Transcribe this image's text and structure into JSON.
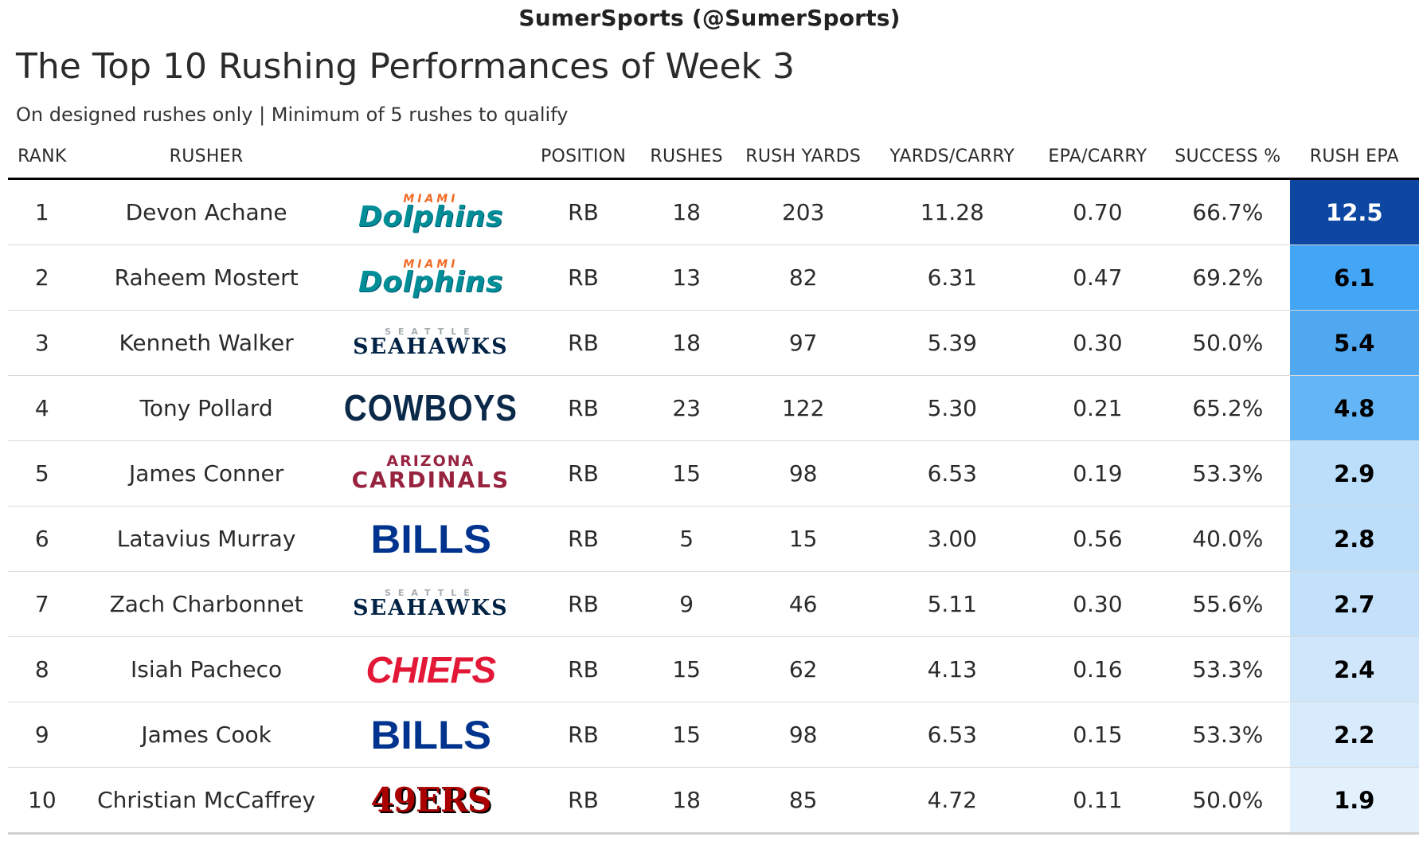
{
  "attribution": "SumerSports (@SumerSports)",
  "title": "The Top 10 Rushing Performances of Week 3",
  "subtitle": "On designed rushes only | Minimum of 5 rushes to qualify",
  "chart_data": {
    "type": "table",
    "columns": [
      "RANK",
      "RUSHER",
      "",
      "POSITION",
      "RUSHES",
      "RUSH YARDS",
      "YARDS/CARRY",
      "EPA/CARRY",
      "SUCCESS %",
      "RUSH EPA"
    ],
    "rows": [
      {
        "rank": "1",
        "rusher": "Devon Achane",
        "team": "dolphins",
        "position": "RB",
        "rushes": "18",
        "rush_yards": "203",
        "yards_per_carry": "11.28",
        "epa_per_carry": "0.70",
        "success": "66.7%",
        "rush_epa": "12.5",
        "epa_bg": "#0d47a1",
        "epa_fg": "#ffffff"
      },
      {
        "rank": "2",
        "rusher": "Raheem Mostert",
        "team": "dolphins",
        "position": "RB",
        "rushes": "13",
        "rush_yards": "82",
        "yards_per_carry": "6.31",
        "epa_per_carry": "0.47",
        "success": "69.2%",
        "rush_epa": "6.1",
        "epa_bg": "#42a5f5",
        "epa_fg": "#000000"
      },
      {
        "rank": "3",
        "rusher": "Kenneth Walker",
        "team": "seahawks",
        "position": "RB",
        "rushes": "18",
        "rush_yards": "97",
        "yards_per_carry": "5.39",
        "epa_per_carry": "0.30",
        "success": "50.0%",
        "rush_epa": "5.4",
        "epa_bg": "#4fa8f0",
        "epa_fg": "#000000"
      },
      {
        "rank": "4",
        "rusher": "Tony Pollard",
        "team": "cowboys",
        "position": "RB",
        "rushes": "23",
        "rush_yards": "122",
        "yards_per_carry": "5.30",
        "epa_per_carry": "0.21",
        "success": "65.2%",
        "rush_epa": "4.8",
        "epa_bg": "#64b5f6",
        "epa_fg": "#000000"
      },
      {
        "rank": "5",
        "rusher": "James Conner",
        "team": "cardinals",
        "position": "RB",
        "rushes": "15",
        "rush_yards": "98",
        "yards_per_carry": "6.53",
        "epa_per_carry": "0.19",
        "success": "53.3%",
        "rush_epa": "2.9",
        "epa_bg": "#bbdefb",
        "epa_fg": "#000000"
      },
      {
        "rank": "6",
        "rusher": "Latavius Murray",
        "team": "bills",
        "position": "RB",
        "rushes": "5",
        "rush_yards": "15",
        "yards_per_carry": "3.00",
        "epa_per_carry": "0.56",
        "success": "40.0%",
        "rush_epa": "2.8",
        "epa_bg": "#bcdefa",
        "epa_fg": "#000000"
      },
      {
        "rank": "7",
        "rusher": "Zach Charbonnet",
        "team": "seahawks",
        "position": "RB",
        "rushes": "9",
        "rush_yards": "46",
        "yards_per_carry": "5.11",
        "epa_per_carry": "0.30",
        "success": "55.6%",
        "rush_epa": "2.7",
        "epa_bg": "#c3e1fb",
        "epa_fg": "#000000"
      },
      {
        "rank": "8",
        "rusher": "Isiah Pacheco",
        "team": "chiefs",
        "position": "RB",
        "rushes": "15",
        "rush_yards": "62",
        "yards_per_carry": "4.13",
        "epa_per_carry": "0.16",
        "success": "53.3%",
        "rush_epa": "2.4",
        "epa_bg": "#cfe6fb",
        "epa_fg": "#000000"
      },
      {
        "rank": "9",
        "rusher": "James Cook",
        "team": "bills",
        "position": "RB",
        "rushes": "15",
        "rush_yards": "98",
        "yards_per_carry": "6.53",
        "epa_per_carry": "0.15",
        "success": "53.3%",
        "rush_epa": "2.2",
        "epa_bg": "#d8ebfc",
        "epa_fg": "#000000"
      },
      {
        "rank": "10",
        "rusher": "Christian McCaffrey",
        "team": "49ers",
        "position": "RB",
        "rushes": "18",
        "rush_yards": "85",
        "yards_per_carry": "4.72",
        "epa_per_carry": "0.11",
        "success": "50.0%",
        "rush_epa": "1.9",
        "epa_bg": "#e3f1fd",
        "epa_fg": "#000000"
      }
    ]
  },
  "logos": {
    "dolphins": {
      "top": "MIAMI",
      "main": "Dolphins"
    },
    "seahawks": {
      "top": "SEATTLE",
      "main": "SEAHAWKS"
    },
    "cowboys": {
      "main": "COWBOYS"
    },
    "cardinals": {
      "top": "ARIZONA",
      "main": "CARDINALS"
    },
    "bills": {
      "main": "BILLS"
    },
    "chiefs": {
      "main": "CHIEFS"
    },
    "49ers": {
      "main": "49ERS"
    }
  }
}
